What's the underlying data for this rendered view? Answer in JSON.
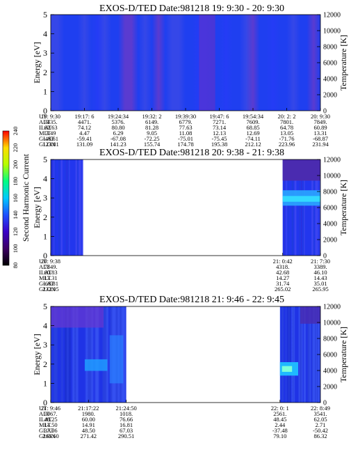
{
  "chart_data": [
    {
      "type": "heatmap",
      "title": "EXOS-D/TED   Date:981218  19: 9:30 - 20: 9:30",
      "ylabel": "Energy [eV]",
      "y2label": "Temperature [K]",
      "ylim": [
        0,
        5
      ],
      "yticks": [
        "0",
        "1",
        "2",
        "3",
        "4",
        "5"
      ],
      "y2lim": [
        0,
        12000
      ],
      "y2ticks": [
        "0",
        "2000",
        "4000",
        "6000",
        "8000",
        "10000",
        "12000"
      ],
      "coverage": [
        [
          0,
          1
        ]
      ],
      "ephemeris": {
        "labels": [
          "UT",
          "ALT",
          "ILAT",
          "MLT",
          "GLAT",
          "GLON"
        ],
        "columns": [
          {
            "UT": "19: 9:30",
            "ALT": "3435.",
            "ILAT": "62.63",
            "MLT": "3.49",
            "GLAT": "-48.61",
            "GLON": "123.81"
          },
          {
            "UT": "19:17: 6",
            "ALT": "4471.",
            "ILAT": "74.12",
            "MLT": "4.47",
            "GLAT": "-59.41",
            "GLON": "131.09"
          },
          {
            "UT": "19:24:34",
            "ALT": "5376.",
            "ILAT": "80.80",
            "MLT": "6.29",
            "GLAT": "-67.08",
            "GLON": "141.23"
          },
          {
            "UT": "19:32: 2",
            "ALT": "6149.",
            "ILAT": "81.28",
            "MLT": "9.05",
            "GLAT": "-72.25",
            "GLON": "155.74"
          },
          {
            "UT": "19:39:30",
            "ALT": "6779.",
            "ILAT": "77.63",
            "MLT": "11.08",
            "GLAT": "-75.01",
            "GLON": "174.78"
          },
          {
            "UT": "19:47: 6",
            "ALT": "7271.",
            "ILAT": "73.14",
            "MLT": "12.13",
            "GLAT": "-75.45",
            "GLON": "195.38"
          },
          {
            "UT": "19:54:34",
            "ALT": "7609.",
            "ILAT": "68.85",
            "MLT": "12.69",
            "GLAT": "-74.11",
            "GLON": "212.12"
          },
          {
            "UT": "20: 2: 2",
            "ALT": "7801.",
            "ILAT": "64.78",
            "MLT": "13.05",
            "GLAT": "-71.76",
            "GLON": "223.96"
          },
          {
            "UT": "20: 9:30",
            "ALT": "7849.",
            "ILAT": "60.89",
            "MLT": "13.31",
            "GLAT": "-68.87",
            "GLON": "231.94"
          }
        ]
      }
    },
    {
      "type": "heatmap",
      "title": "EXOS-D/TED   Date:981218  20: 9:38 - 21: 9:38",
      "ylabel": "Energy [eV]",
      "y2label": "Temperature [K]",
      "ylim": [
        0,
        5
      ],
      "yticks": [
        "0",
        "1",
        "2",
        "3",
        "4",
        "5"
      ],
      "y2lim": [
        0,
        12000
      ],
      "y2ticks": [
        "0",
        "2000",
        "4000",
        "6000",
        "8000",
        "10000",
        "12000"
      ],
      "coverage": [
        [
          0,
          0.12
        ],
        [
          0.86,
          1
        ]
      ],
      "ephemeris": {
        "labels": [
          "UT",
          "ALT",
          "ILAT",
          "MLT",
          "GLAT",
          "GLON"
        ],
        "columns": [
          {
            "UT": "20: 9:38",
            "ALT": "7849.",
            "ILAT": "60.83",
            "MLT": "13.31",
            "GLAT": "-68.81",
            "GLON": "232.05"
          },
          {
            "UT": "21: 0:42",
            "ALT": "4318.",
            "ILAT": "42.68",
            "MLT": "14.27",
            "GLAT": "31.74",
            "GLON": "265.02"
          },
          {
            "UT": "21: 7:30",
            "ALT": "3389.",
            "ILAT": "46.10",
            "MLT": "14.43",
            "GLAT": "35.01",
            "GLON": "265.95"
          }
        ]
      }
    },
    {
      "type": "heatmap",
      "title": "EXOS-D/TED   Date:981218  21: 9:46 - 22: 9:45",
      "ylabel": "Energy [eV]",
      "y2label": "Temperature [K]",
      "ylim": [
        0,
        5
      ],
      "yticks": [
        "0",
        "1",
        "2",
        "3",
        "4",
        "5"
      ],
      "y2lim": [
        0,
        12000
      ],
      "y2ticks": [
        "0",
        "2000",
        "4000",
        "6000",
        "8000",
        "10000",
        "12000"
      ],
      "coverage": [
        [
          0,
          0.28
        ],
        [
          0.85,
          1
        ]
      ],
      "ephemeris": {
        "labels": [
          "UT",
          "ALT",
          "ILAT",
          "MLT",
          "GLAT",
          "GLON"
        ],
        "columns": [
          {
            "UT": "21: 9:46",
            "ALT": "3067.",
            "ILAT": "48.25",
            "MLT": "14.50",
            "GLAT": "37.06",
            "GLON": "266.60"
          },
          {
            "UT": "21:17:22",
            "ALT": "1980.",
            "ILAT": "60.00",
            "MLT": "14.91",
            "GLAT": "48.50",
            "GLON": "271.42"
          },
          {
            "UT": "21:24:50",
            "ALT": "1018.",
            "ILAT": "76.66",
            "MLT": "16.81",
            "GLAT": "67.03",
            "GLON": "290.51"
          },
          {
            "UT": "22: 0: 1",
            "ALT": "2561.",
            "ILAT": "48.45",
            "MLT": "2.44",
            "GLAT": "-37.48",
            "GLON": "79.10"
          },
          {
            "UT": "22: 8:49",
            "ALT": "3541.",
            "ILAT": "62.05",
            "MLT": "2.71",
            "GLAT": "-50.42",
            "GLON": "86.32"
          }
        ]
      }
    }
  ],
  "colorbar": {
    "label": "Second Harmonic Current",
    "ticks": [
      "80",
      "100",
      "120",
      "140",
      "160",
      "180",
      "200",
      "220",
      "240"
    ],
    "colors": [
      "#000000",
      "#3c0064",
      "#3a00c8",
      "#1e50ff",
      "#00c8ff",
      "#00ff82",
      "#b4ff00",
      "#ffdc00",
      "#ff0000"
    ]
  }
}
